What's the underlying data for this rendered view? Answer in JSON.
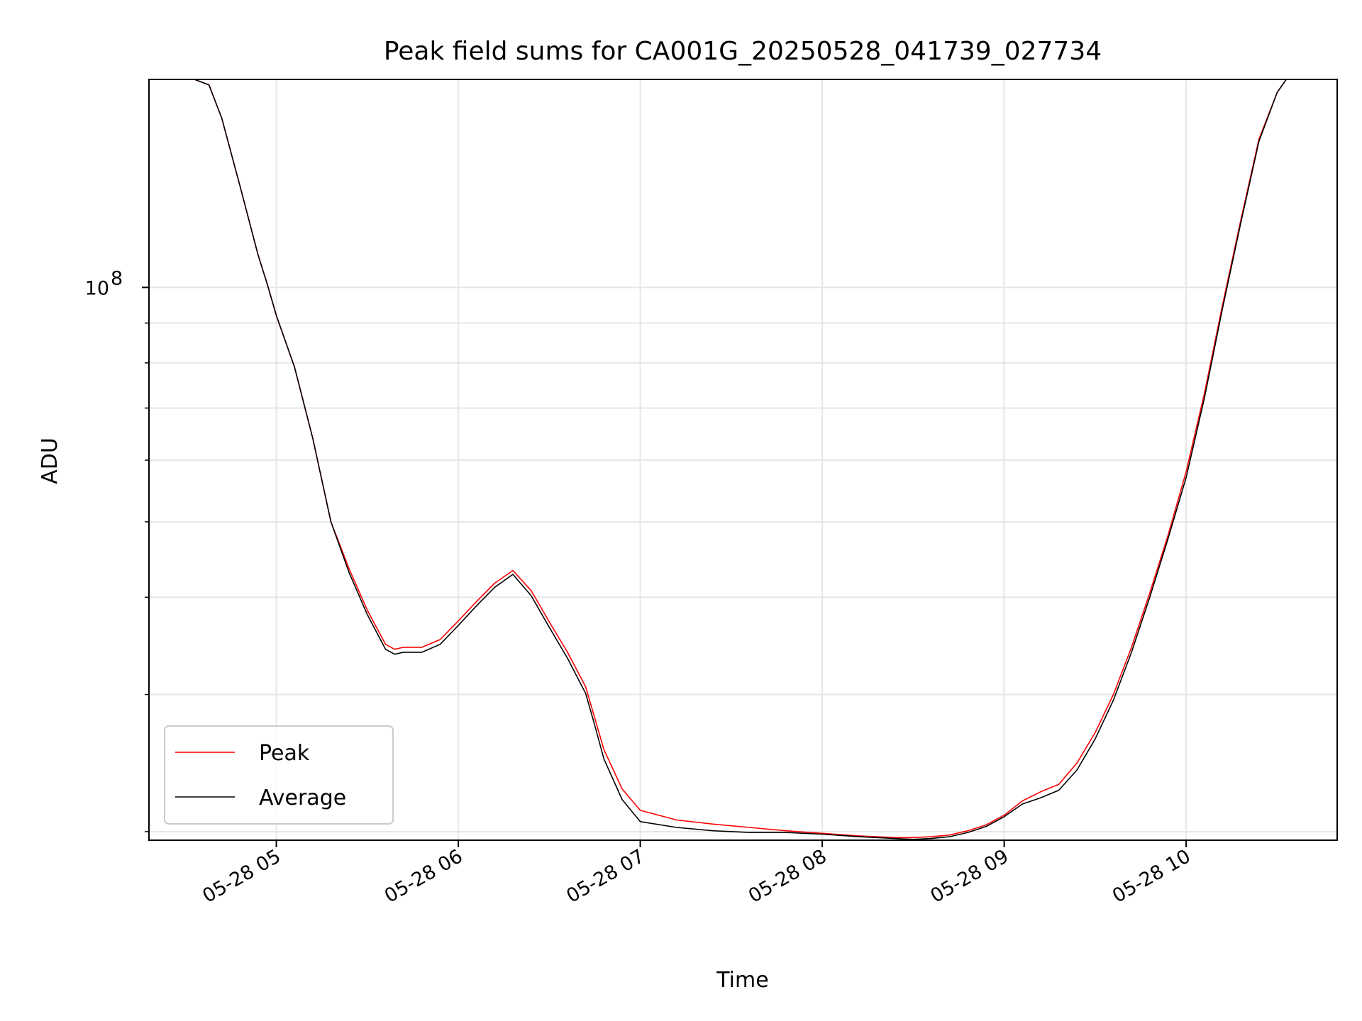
{
  "chart_data": {
    "type": "line",
    "title": "Peak field sums for CA001G_20250528_041739_027734",
    "xlabel": "Time",
    "ylabel": "ADU",
    "y_scale": "log",
    "grid": true,
    "legend_position": "lower-left",
    "x_unit": "hours on 2025-05-28",
    "xlim": [
      4.3,
      10.83
    ],
    "ylim": [
      19500000,
      185000000
    ],
    "x_ticks": [
      5,
      6,
      7,
      8,
      9,
      10
    ],
    "x_tick_labels": [
      "05-28 05",
      "05-28 06",
      "05-28 07",
      "05-28 08",
      "05-28 09",
      "05-28 10"
    ],
    "y_major_ticks": [
      100000000
    ],
    "y_major_tick_label": "10",
    "y_major_tick_exponent": "8",
    "y_minor_ticks": [
      20000000,
      30000000,
      40000000,
      50000000,
      60000000,
      70000000,
      80000000,
      90000000
    ],
    "series": [
      {
        "name": "Peak",
        "color": "#ff0000",
        "x": [
          4.4,
          4.55,
          4.63,
          4.7,
          4.8,
          4.9,
          4.95,
          5.0,
          5.1,
          5.2,
          5.3,
          5.4,
          5.5,
          5.6,
          5.65,
          5.7,
          5.8,
          5.9,
          6.0,
          6.1,
          6.2,
          6.3,
          6.4,
          6.5,
          6.6,
          6.7,
          6.75,
          6.8,
          6.9,
          7.0,
          7.2,
          7.4,
          7.6,
          7.8,
          8.0,
          8.2,
          8.4,
          8.5,
          8.6,
          8.7,
          8.8,
          8.9,
          9.0,
          9.1,
          9.2,
          9.3,
          9.4,
          9.5,
          9.6,
          9.7,
          9.8,
          9.9,
          10.0,
          10.1,
          10.2,
          10.3,
          10.4,
          10.5,
          10.55,
          10.6,
          10.7
        ],
        "y": [
          185000000,
          185000000,
          182000000,
          165000000,
          135000000,
          110000000,
          101000000,
          92000000,
          79000000,
          64000000,
          50000000,
          43500000,
          38500000,
          34800000,
          34300000,
          34500000,
          34500000,
          35300000,
          37300000,
          39500000,
          41700000,
          43300000,
          40800000,
          37200000,
          34000000,
          30700000,
          28000000,
          25500000,
          22700000,
          21300000,
          20700000,
          20450000,
          20250000,
          20050000,
          19900000,
          19750000,
          19650000,
          19650000,
          19700000,
          19800000,
          20050000,
          20400000,
          21000000,
          21900000,
          22500000,
          23000000,
          24500000,
          26800000,
          30000000,
          34500000,
          40500000,
          48000000,
          58000000,
          73000000,
          95000000,
          122000000,
          155000000,
          178000000,
          185000000,
          185000000,
          185000000
        ]
      },
      {
        "name": "Average",
        "color": "#000000",
        "x": [
          4.4,
          4.55,
          4.63,
          4.7,
          4.8,
          4.9,
          4.95,
          5.0,
          5.1,
          5.2,
          5.3,
          5.4,
          5.5,
          5.6,
          5.65,
          5.7,
          5.8,
          5.9,
          6.0,
          6.1,
          6.2,
          6.3,
          6.4,
          6.5,
          6.6,
          6.7,
          6.75,
          6.8,
          6.9,
          7.0,
          7.2,
          7.4,
          7.6,
          7.8,
          8.0,
          8.2,
          8.4,
          8.5,
          8.6,
          8.7,
          8.8,
          8.9,
          9.0,
          9.1,
          9.2,
          9.3,
          9.4,
          9.5,
          9.6,
          9.7,
          9.8,
          9.9,
          10.0,
          10.1,
          10.2,
          10.3,
          10.4,
          10.5,
          10.55,
          10.6,
          10.7
        ],
        "y": [
          185000000,
          185000000,
          182000000,
          165000000,
          135000000,
          110000000,
          101000000,
          92000000,
          79000000,
          64000000,
          50000000,
          43000000,
          38000000,
          34300000,
          33800000,
          34000000,
          34000000,
          34800000,
          36800000,
          39000000,
          41200000,
          42800000,
          40200000,
          36600000,
          33400000,
          30100000,
          27400000,
          24800000,
          22000000,
          20600000,
          20250000,
          20050000,
          19950000,
          19950000,
          19850000,
          19700000,
          19600000,
          19550000,
          19600000,
          19700000,
          19950000,
          20300000,
          20900000,
          21700000,
          22100000,
          22600000,
          24000000,
          26300000,
          29500000,
          34000000,
          40000000,
          47500000,
          57000000,
          72000000,
          94000000,
          121000000,
          154000000,
          178000000,
          185000000,
          185000000,
          185000000
        ]
      }
    ]
  }
}
